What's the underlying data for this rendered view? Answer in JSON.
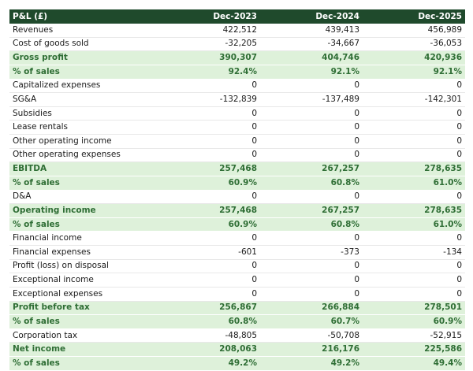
{
  "table": {
    "header": [
      "P&L (£)",
      "Dec-2023",
      "Dec-2024",
      "Dec-2025"
    ],
    "rows": [
      [
        "Revenues",
        "422,512",
        "439,413",
        "456,989"
      ],
      [
        "Cost of goods sold",
        "-32,205",
        "-34,667",
        "-36,053"
      ],
      [
        "Gross profit",
        "390,307",
        "404,746",
        "420,936"
      ],
      [
        "% of sales",
        "92.4%",
        "92.1%",
        "92.1%"
      ],
      [
        "Capitalized expenses",
        "0",
        "0",
        "0"
      ],
      [
        "SG&A",
        "-132,839",
        "-137,489",
        "-142,301"
      ],
      [
        "Subsidies",
        "0",
        "0",
        "0"
      ],
      [
        "Lease rentals",
        "0",
        "0",
        "0"
      ],
      [
        "Other operating income",
        "0",
        "0",
        "0"
      ],
      [
        "Other operating expenses",
        "0",
        "0",
        "0"
      ],
      [
        "EBITDA",
        "257,468",
        "267,257",
        "278,635"
      ],
      [
        "% of sales",
        "60.9%",
        "60.8%",
        "61.0%"
      ],
      [
        "D&A",
        "0",
        "0",
        "0"
      ],
      [
        "Operating income",
        "257,468",
        "267,257",
        "278,635"
      ],
      [
        "% of sales",
        "60.9%",
        "60.8%",
        "61.0%"
      ],
      [
        "Financial income",
        "0",
        "0",
        "0"
      ],
      [
        "Financial expenses",
        "-601",
        "-373",
        "-134"
      ],
      [
        "Profit (loss) on disposal",
        "0",
        "0",
        "0"
      ],
      [
        "Exceptional income",
        "0",
        "0",
        "0"
      ],
      [
        "Exceptional expenses",
        "0",
        "0",
        "0"
      ],
      [
        "Profit before tax",
        "256,867",
        "266,884",
        "278,501"
      ],
      [
        "% of sales",
        "60.8%",
        "60.7%",
        "60.9%"
      ],
      [
        "Corporation tax",
        "-48,805",
        "-50,708",
        "-52,915"
      ],
      [
        "Net income",
        "208,063",
        "216,176",
        "225,586"
      ],
      [
        "% of sales",
        "49.2%",
        "49.2%",
        "49.4%"
      ]
    ]
  }
}
